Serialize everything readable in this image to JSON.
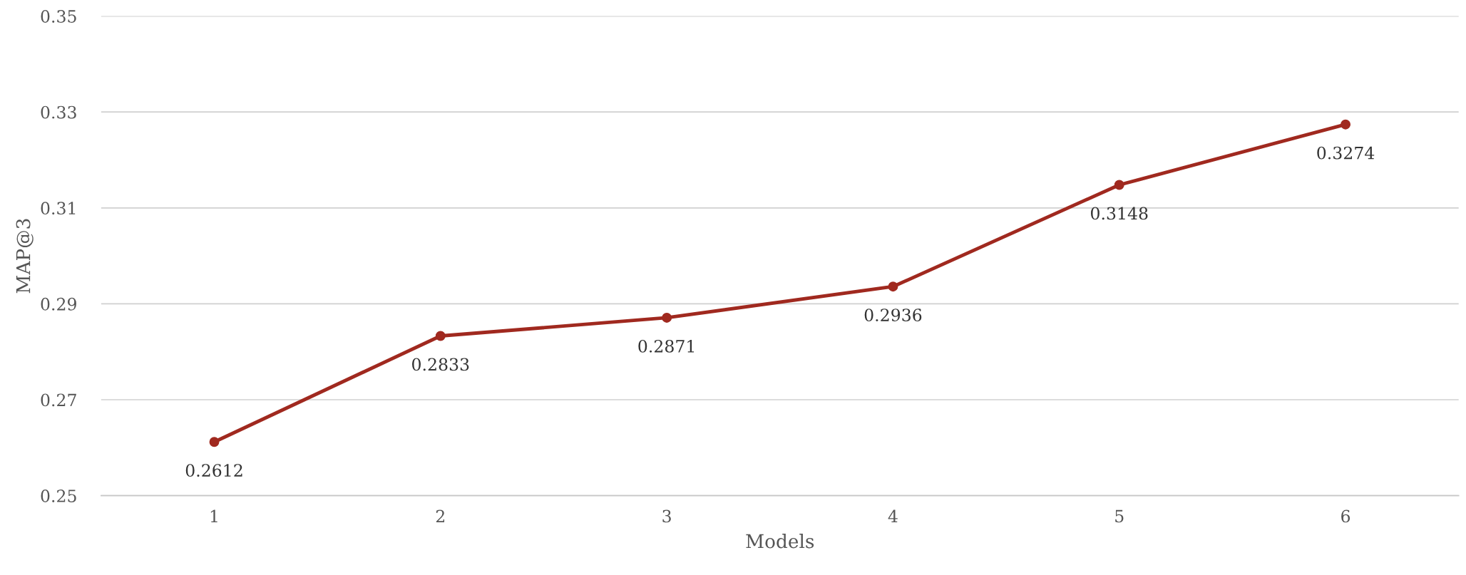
{
  "chart_data": {
    "type": "line",
    "xlabel": "Models",
    "ylabel": "MAP@3",
    "categories": [
      "1",
      "2",
      "3",
      "4",
      "5",
      "6"
    ],
    "series": [
      {
        "color": "#a0291f",
        "values": [
          0.2612,
          0.2833,
          0.2871,
          0.2936,
          0.3148,
          0.3274
        ]
      }
    ],
    "ylim": [
      0.25,
      0.35
    ],
    "yticks": [
      0.25,
      0.27,
      0.29,
      0.31,
      0.33,
      0.35
    ],
    "grid": "y",
    "marker": "circle",
    "line_style": "solid",
    "data_labels": true
  }
}
